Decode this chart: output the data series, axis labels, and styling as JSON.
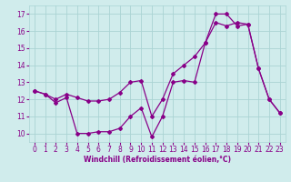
{
  "line1_x": [
    0,
    1,
    2,
    3,
    4,
    5,
    6,
    7,
    8,
    9,
    10,
    11,
    12,
    13,
    14,
    15,
    16,
    17,
    18,
    19,
    20,
    21,
    22,
    23
  ],
  "line1_y": [
    12.5,
    12.3,
    11.8,
    12.1,
    10.0,
    10.0,
    10.1,
    10.1,
    10.3,
    11.0,
    11.5,
    9.8,
    11.0,
    13.0,
    13.1,
    13.0,
    15.3,
    17.0,
    17.0,
    16.3,
    16.4,
    13.8,
    12.0,
    11.2
  ],
  "line2_x": [
    0,
    1,
    2,
    3,
    4,
    5,
    6,
    7,
    8,
    9,
    10,
    11,
    12,
    13,
    14,
    15,
    16,
    17,
    18,
    19,
    20,
    21,
    22,
    23
  ],
  "line2_y": [
    12.5,
    12.3,
    12.0,
    12.3,
    12.1,
    11.9,
    11.9,
    12.0,
    12.4,
    13.0,
    13.1,
    11.0,
    12.0,
    13.5,
    14.0,
    14.5,
    15.3,
    16.5,
    16.3,
    16.5,
    16.4,
    13.8,
    12.0,
    11.2
  ],
  "line_color": "#880088",
  "bg_color": "#d0ecec",
  "grid_color": "#aad4d4",
  "xlabel": "Windchill (Refroidissement éolien,°C)",
  "xlim": [
    -0.5,
    23.5
  ],
  "ylim": [
    9.5,
    17.5
  ],
  "yticks": [
    10,
    11,
    12,
    13,
    14,
    15,
    16,
    17
  ],
  "xticks": [
    0,
    1,
    2,
    3,
    4,
    5,
    6,
    7,
    8,
    9,
    10,
    11,
    12,
    13,
    14,
    15,
    16,
    17,
    18,
    19,
    20,
    21,
    22,
    23
  ]
}
